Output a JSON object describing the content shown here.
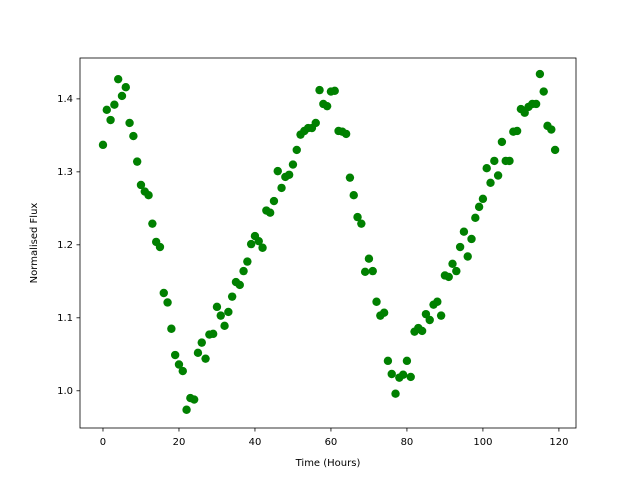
{
  "chart_data": {
    "type": "scatter",
    "xlabel": "Time (Hours)",
    "ylabel": "Normalised Flux",
    "color": "#008000",
    "x": [
      0,
      1,
      2,
      3,
      4,
      5,
      6,
      7,
      8,
      9,
      10,
      11,
      12,
      13,
      14,
      15,
      16,
      17,
      18,
      19,
      20,
      21,
      22,
      23,
      24,
      25,
      26,
      27,
      28,
      29,
      30,
      31,
      32,
      33,
      34,
      35,
      36,
      37,
      38,
      39,
      40,
      41,
      42,
      43,
      44,
      45,
      46,
      47,
      48,
      49,
      50,
      51,
      52,
      53,
      54,
      55,
      56,
      57,
      58,
      59,
      60,
      61,
      62,
      63,
      64,
      65,
      66,
      67,
      68,
      69,
      70,
      71,
      72,
      73,
      74,
      75,
      76,
      77,
      78,
      79,
      80,
      81,
      82,
      83,
      84,
      85,
      86,
      87,
      88,
      89,
      90,
      91,
      92,
      93,
      94,
      95,
      96,
      97,
      98,
      99,
      100,
      101,
      102,
      103,
      104,
      105,
      106,
      107,
      108,
      109,
      110,
      111,
      112,
      113,
      114,
      115,
      116,
      117,
      118,
      119
    ],
    "values": [
      1.337,
      1.385,
      1.371,
      1.392,
      1.427,
      1.404,
      1.416,
      1.367,
      1.349,
      1.314,
      1.282,
      1.273,
      1.268,
      1.229,
      1.204,
      1.197,
      1.134,
      1.121,
      1.085,
      1.049,
      1.036,
      1.027,
      0.974,
      0.99,
      0.988,
      1.052,
      1.066,
      1.044,
      1.077,
      1.078,
      1.115,
      1.103,
      1.089,
      1.108,
      1.129,
      1.149,
      1.145,
      1.164,
      1.177,
      1.201,
      1.212,
      1.205,
      1.196,
      1.247,
      1.244,
      1.26,
      1.301,
      1.278,
      1.293,
      1.296,
      1.31,
      1.33,
      1.351,
      1.356,
      1.36,
      1.36,
      1.367,
      1.412,
      1.393,
      1.39,
      1.41,
      1.411,
      1.356,
      1.355,
      1.352,
      1.292,
      1.268,
      1.238,
      1.229,
      1.163,
      1.181,
      1.164,
      1.122,
      1.103,
      1.107,
      1.041,
      1.023,
      0.996,
      1.018,
      1.022,
      1.041,
      1.019,
      1.081,
      1.086,
      1.082,
      1.105,
      1.097,
      1.118,
      1.122,
      1.103,
      1.158,
      1.156,
      1.174,
      1.164,
      1.197,
      1.218,
      1.184,
      1.208,
      1.237,
      1.252,
      1.263,
      1.305,
      1.285,
      1.315,
      1.295,
      1.341,
      1.315,
      1.315,
      1.355,
      1.356,
      1.386,
      1.381,
      1.389,
      1.393,
      1.393,
      1.434,
      1.41,
      1.363,
      1.358,
      1.33
    ],
    "xlim": [
      -6.05,
      124.5
    ],
    "xticks": [
      0,
      20,
      40,
      60,
      80,
      100,
      120
    ],
    "ylim": [
      0.949,
      1.456
    ],
    "yticks": [
      {
        "value": 1.0,
        "label": "1.0"
      },
      1.1,
      1.2,
      1.3,
      1.4
    ]
  }
}
